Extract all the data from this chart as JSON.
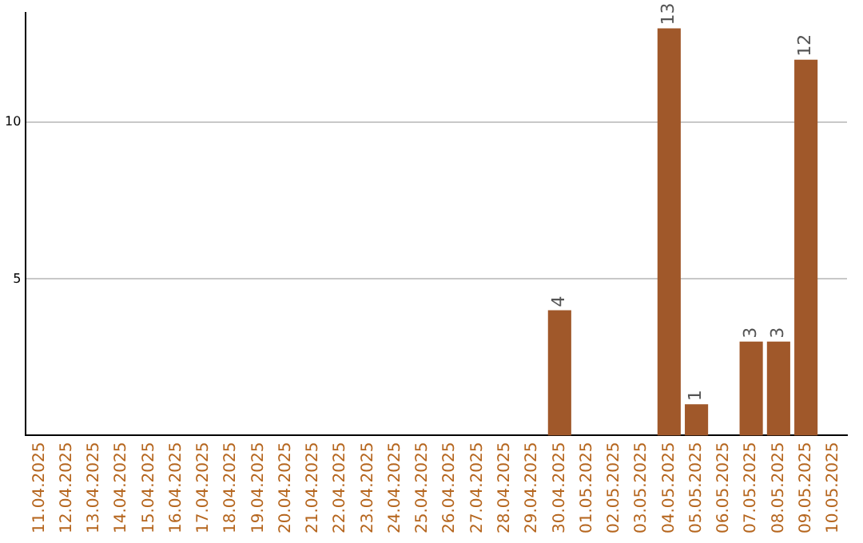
{
  "chart_data": {
    "type": "bar",
    "categories": [
      "11.04.2025",
      "12.04.2025",
      "13.04.2025",
      "14.04.2025",
      "15.04.2025",
      "16.04.2025",
      "17.04.2025",
      "18.04.2025",
      "19.04.2025",
      "20.04.2025",
      "21.04.2025",
      "22.04.2025",
      "23.04.2025",
      "24.04.2025",
      "25.04.2025",
      "26.04.2025",
      "27.04.2025",
      "28.04.2025",
      "29.04.2025",
      "30.04.2025",
      "01.05.2025",
      "02.05.2025",
      "03.05.2025",
      "04.05.2025",
      "05.05.2025",
      "06.05.2025",
      "07.05.2025",
      "08.05.2025",
      "09.05.2025",
      "10.05.2025"
    ],
    "values": [
      0,
      0,
      0,
      0,
      0,
      0,
      0,
      0,
      0,
      0,
      0,
      0,
      0,
      0,
      0,
      0,
      0,
      0,
      0,
      4,
      0,
      0,
      0,
      13,
      1,
      0,
      3,
      3,
      12,
      0
    ],
    "value_labels": [
      null,
      null,
      null,
      null,
      null,
      null,
      null,
      null,
      null,
      null,
      null,
      null,
      null,
      null,
      null,
      null,
      null,
      null,
      null,
      "4",
      null,
      null,
      null,
      "13",
      "1",
      null,
      "3",
      "3",
      "12",
      null
    ],
    "color": "#a0582a",
    "ylim": [
      0,
      13.5
    ],
    "yticks": [
      5,
      10
    ],
    "grid": "y",
    "legend": false
  }
}
